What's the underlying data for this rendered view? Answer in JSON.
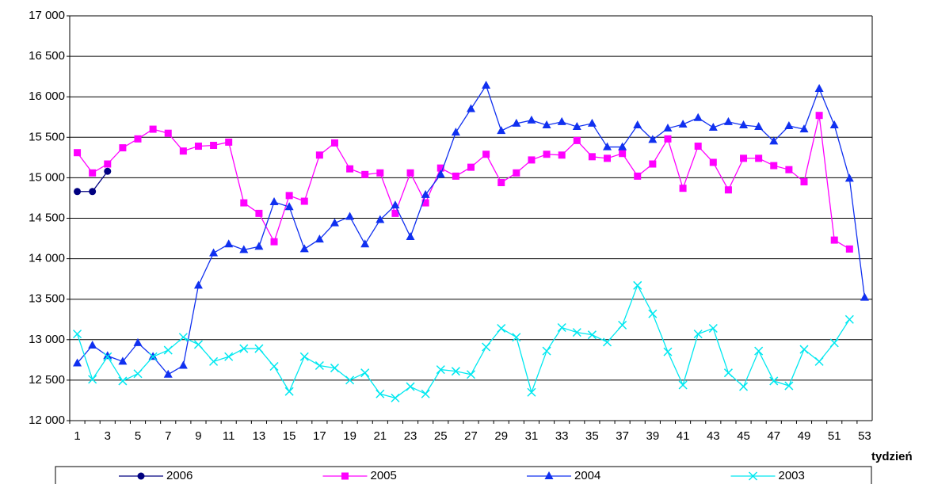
{
  "chart_data": {
    "type": "line",
    "x_label": "tydzień",
    "categories": [
      1,
      null,
      3,
      null,
      5,
      null,
      7,
      null,
      9,
      null,
      11,
      null,
      13,
      null,
      15,
      null,
      17,
      null,
      19,
      null,
      21,
      null,
      23,
      null,
      25,
      null,
      27,
      null,
      29,
      null,
      31,
      null,
      33,
      null,
      35,
      null,
      37,
      null,
      39,
      null,
      41,
      null,
      43,
      null,
      45,
      null,
      47,
      null,
      49,
      null,
      51,
      null,
      53
    ],
    "ylim": [
      12000,
      17000
    ],
    "yticks": [
      {
        "value": 12000,
        "label": "12 000"
      },
      {
        "value": 12500,
        "label": "12 500"
      },
      {
        "value": 13000,
        "label": "13 000"
      },
      {
        "value": 13500,
        "label": "13 500"
      },
      {
        "value": 14000,
        "label": "14 000"
      },
      {
        "value": 14500,
        "label": "14 500"
      },
      {
        "value": 15000,
        "label": "15 000"
      },
      {
        "value": 15500,
        "label": "15 500"
      },
      {
        "value": 16000,
        "label": "16 000"
      },
      {
        "value": 16500,
        "label": "16 500"
      },
      {
        "value": 17000,
        "label": "17 000"
      }
    ],
    "grid": true,
    "legend": "bottom",
    "series": [
      {
        "name": "2006",
        "color": "#000080",
        "marker": "circle",
        "values": [
          14830,
          14830,
          15080,
          null,
          null,
          null,
          null,
          null,
          null,
          null,
          null,
          null,
          null,
          null,
          null,
          null,
          null,
          null,
          null,
          null,
          null,
          null,
          null,
          null,
          null,
          null,
          null,
          null,
          null,
          null,
          null,
          null,
          null,
          null,
          null,
          null,
          null,
          null,
          null,
          null,
          null,
          null,
          null,
          null,
          null,
          null,
          null,
          null,
          null,
          null,
          null,
          null,
          null
        ]
      },
      {
        "name": "2005",
        "color": "#ff00ff",
        "marker": "square",
        "values": [
          15310,
          15060,
          15170,
          15370,
          15480,
          15600,
          15550,
          15330,
          15390,
          15400,
          15440,
          14690,
          14560,
          14210,
          14780,
          14710,
          15280,
          15430,
          15110,
          15040,
          15060,
          14560,
          15060,
          14690,
          15120,
          15020,
          15130,
          15290,
          14940,
          15060,
          15220,
          15290,
          15280,
          15460,
          15260,
          15240,
          15300,
          15020,
          15170,
          15480,
          14870,
          15390,
          15190,
          14850,
          15240,
          15240,
          15150,
          15100,
          14950,
          15770,
          14230,
          14120,
          null
        ]
      },
      {
        "name": "2004",
        "color": "#1030f0",
        "marker": "triangle",
        "values": [
          12710,
          12930,
          12800,
          12730,
          12960,
          12790,
          12570,
          12680,
          13670,
          14070,
          14180,
          14110,
          14150,
          14700,
          14640,
          14120,
          14240,
          14440,
          14520,
          14180,
          14480,
          14660,
          14270,
          14790,
          15040,
          15560,
          15850,
          16140,
          15580,
          15670,
          15710,
          15650,
          15690,
          15630,
          15670,
          15380,
          15380,
          15650,
          15470,
          15610,
          15660,
          15740,
          15620,
          15690,
          15650,
          15630,
          15450,
          15640,
          15600,
          16100,
          15650,
          14990,
          13520
        ]
      },
      {
        "name": "2003",
        "color": "#00e8f0",
        "marker": "x",
        "values": [
          13070,
          12510,
          12790,
          12490,
          12580,
          12790,
          12870,
          13030,
          12940,
          12730,
          12790,
          12890,
          12890,
          12670,
          12360,
          12790,
          12680,
          12650,
          12500,
          12590,
          12330,
          12280,
          12420,
          12330,
          12630,
          12610,
          12570,
          12910,
          13140,
          13030,
          12350,
          12860,
          13150,
          13090,
          13060,
          12970,
          13180,
          13670,
          13320,
          12850,
          12440,
          13070,
          13140,
          12590,
          12420,
          12860,
          12490,
          12430,
          12880,
          12730,
          12960,
          13250,
          null
        ]
      }
    ]
  }
}
